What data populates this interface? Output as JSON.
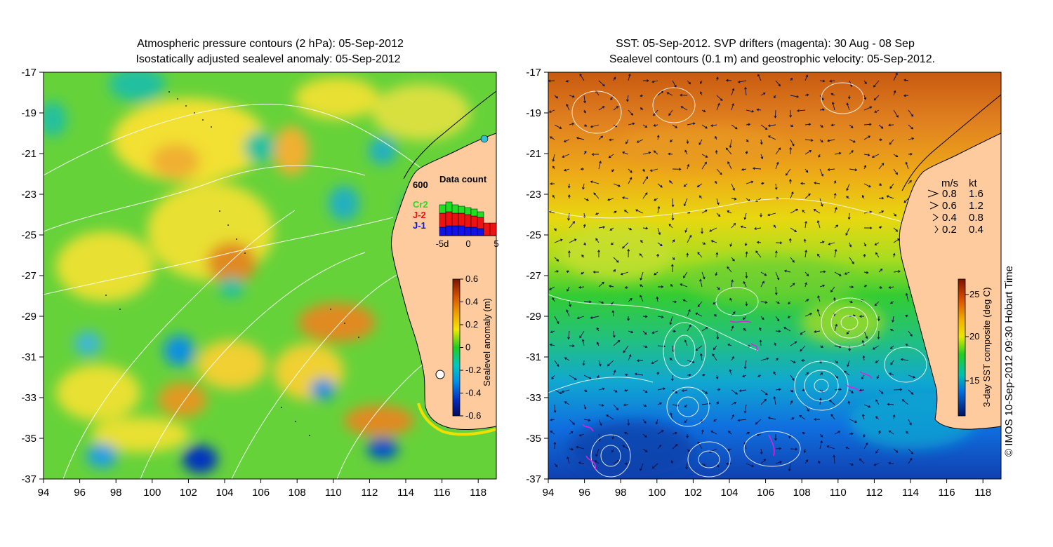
{
  "left_panel": {
    "title_line1": "Atmospheric pressure contours (2 hPa): 05-Sep-2012",
    "title_line2": "Isostatically adjusted sealevel anomaly: 05-Sep-2012",
    "colorbar_label": "Sealevel anomaly (m)",
    "colorbar_ticks": [
      "0.6",
      "0.4",
      "0.2",
      "0",
      "-0.2",
      "-0.4",
      "-0.6"
    ],
    "data_count": {
      "title": "Data count",
      "label_600": "600",
      "legend": [
        {
          "name": "Cr2",
          "color": "#22dd22"
        },
        {
          "name": "J-2",
          "color": "#ee1111"
        },
        {
          "name": "J-1",
          "color": "#1111ee"
        }
      ],
      "x_ticks": [
        "-5d",
        "0",
        "5"
      ],
      "bars": [
        {
          "j1": 0.3,
          "j2": 0.5,
          "cr2": 0.3
        },
        {
          "j1": 0.35,
          "j2": 0.5,
          "cr2": 0.35
        },
        {
          "j1": 0.35,
          "j2": 0.45,
          "cr2": 0.3
        },
        {
          "j1": 0.35,
          "j2": 0.45,
          "cr2": 0.25
        },
        {
          "j1": 0.3,
          "j2": 0.45,
          "cr2": 0.25
        },
        {
          "j1": 0.3,
          "j2": 0.4,
          "cr2": 0.25
        },
        {
          "j1": 0.25,
          "j2": 0.4,
          "cr2": 0.2
        },
        {
          "j1": 0.0,
          "j2": 0.45,
          "cr2": 0.0
        },
        {
          "j1": 0.0,
          "j2": 0.45,
          "cr2": 0.0
        }
      ]
    }
  },
  "right_panel": {
    "title_line1": "SST: 05-Sep-2012. SVP drifters (magenta): 30 Aug - 08 Sep",
    "title_line2": "Sealevel contours (0.1 m) and geostrophic velocity: 05-Sep-2012.",
    "colorbar_label": "3-day SST composite (deg C)",
    "colorbar_ticks": [
      "25",
      "20",
      "15"
    ],
    "velocity_legend": {
      "header_ms": "m/s",
      "header_kt": "kt",
      "rows": [
        {
          "ms": "0.8",
          "kt": "1.6"
        },
        {
          "ms": "0.6",
          "kt": "1.2"
        },
        {
          "ms": "0.4",
          "kt": "0.8"
        },
        {
          "ms": "0.2",
          "kt": "0.4"
        }
      ]
    },
    "credit": "© IMOS 10-Sep-2012 09:30 Hobart Time"
  },
  "axes": {
    "lon_ticks": [
      "94",
      "96",
      "98",
      "100",
      "102",
      "104",
      "106",
      "108",
      "110",
      "112",
      "114",
      "116",
      "118"
    ],
    "lat_ticks": [
      "-17",
      "-19",
      "-21",
      "-23",
      "-25",
      "-27",
      "-29",
      "-31",
      "-33",
      "-35",
      "-37"
    ],
    "lon_range": [
      94,
      119
    ],
    "lat_range": [
      -37,
      -17
    ]
  },
  "colors": {
    "land": "#fdcb9e",
    "coast": "#000000",
    "contour": "#ffffff"
  }
}
